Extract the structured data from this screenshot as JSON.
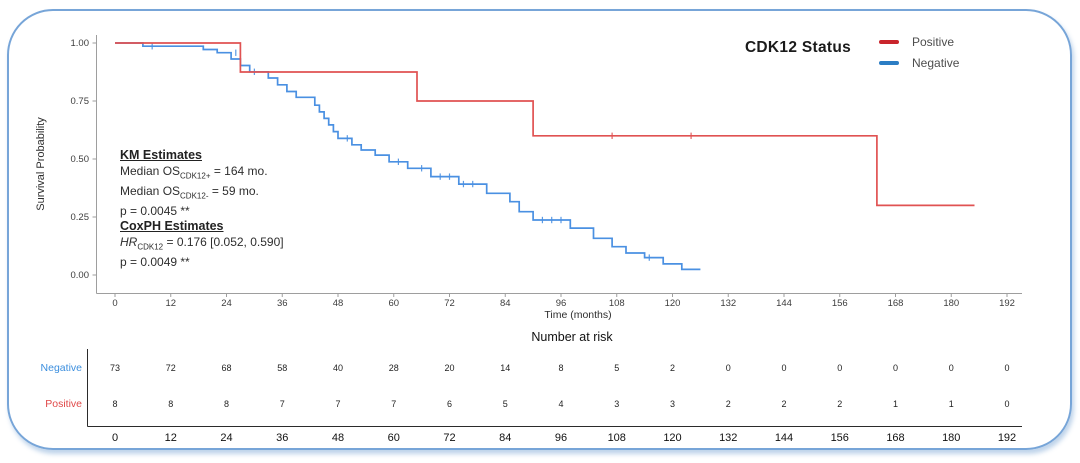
{
  "figure": {
    "title": "CDK12 Status",
    "frame_color": "#77a5d8"
  },
  "legend": {
    "items": [
      {
        "label": "Positive",
        "color": "#c9252c"
      },
      {
        "label": "Negative",
        "color": "#2b7dc4"
      }
    ]
  },
  "annotations": {
    "km": {
      "heading": "KM Estimates",
      "lines": [
        [
          {
            "text": "Median OS"
          },
          {
            "sub": "CDK12+"
          },
          {
            "text": " = 164 mo."
          }
        ],
        [
          {
            "text": "Median OS"
          },
          {
            "sub": "CDK12-"
          },
          {
            "text": " = 59 mo."
          }
        ],
        [
          {
            "text": "p = 0.0045 **"
          }
        ]
      ]
    },
    "cox": {
      "heading": "CoxPH Estimates",
      "lines": [
        [
          {
            "text": "HR",
            "italic": true
          },
          {
            "sub": "CDK12"
          },
          {
            "text": " = 0.176 [0.052, 0.590]"
          }
        ],
        [
          {
            "text": "p = 0.0049 **"
          }
        ]
      ]
    }
  },
  "chart_data": {
    "type": "line",
    "subtype": "kaplan-meier-step",
    "title": "CDK12 Status",
    "xlabel": "Time (months)",
    "ylabel": "Survival Probability",
    "xlim": [
      0,
      192
    ],
    "ylim": [
      0,
      1
    ],
    "x_ticks": [
      0,
      12,
      24,
      36,
      48,
      60,
      72,
      84,
      96,
      108,
      120,
      132,
      144,
      156,
      168,
      180,
      192
    ],
    "y_ticks": [
      1.0,
      0.75,
      0.5,
      0.25,
      0.0
    ],
    "y_tick_labels": [
      "1.00",
      "0.75",
      "0.50",
      "0.25",
      "0.00"
    ],
    "grid": false,
    "legend_position": "top-right",
    "series": [
      {
        "name": "Negative",
        "color": "#4a90e2",
        "steps": [
          [
            0,
            1.0
          ],
          [
            6,
            0.986
          ],
          [
            19,
            0.972
          ],
          [
            22,
            0.958
          ],
          [
            25,
            0.931
          ],
          [
            27,
            0.903
          ],
          [
            29,
            0.876
          ],
          [
            33,
            0.849
          ],
          [
            35,
            0.82
          ],
          [
            37,
            0.791
          ],
          [
            39,
            0.766
          ],
          [
            43,
            0.732
          ],
          [
            44,
            0.703
          ],
          [
            45,
            0.675
          ],
          [
            46,
            0.647
          ],
          [
            47,
            0.618
          ],
          [
            48,
            0.589
          ],
          [
            51,
            0.561
          ],
          [
            53,
            0.539
          ],
          [
            56,
            0.517
          ],
          [
            59,
            0.488
          ],
          [
            63,
            0.46
          ],
          [
            68,
            0.424
          ],
          [
            74,
            0.392
          ],
          [
            80,
            0.352
          ],
          [
            85,
            0.316
          ],
          [
            87,
            0.273
          ],
          [
            90,
            0.237
          ],
          [
            98,
            0.202
          ],
          [
            103,
            0.158
          ],
          [
            107,
            0.122
          ],
          [
            110,
            0.095
          ],
          [
            114,
            0.075
          ],
          [
            118,
            0.048
          ],
          [
            122,
            0.024
          ]
        ],
        "end": 126,
        "censors": [
          [
            8,
            0.986
          ],
          [
            26,
            0.958
          ],
          [
            30,
            0.876
          ],
          [
            50,
            0.589
          ],
          [
            61,
            0.488
          ],
          [
            66,
            0.46
          ],
          [
            70,
            0.424
          ],
          [
            72,
            0.424
          ],
          [
            75,
            0.392
          ],
          [
            77,
            0.392
          ],
          [
            92,
            0.237
          ],
          [
            94,
            0.237
          ],
          [
            96,
            0.237
          ],
          [
            115,
            0.075
          ]
        ]
      },
      {
        "name": "Positive",
        "color": "#e05252",
        "steps": [
          [
            0,
            1.0
          ],
          [
            27,
            0.875
          ],
          [
            65,
            0.75
          ],
          [
            90,
            0.6
          ],
          [
            164,
            0.3
          ]
        ],
        "end": 185,
        "censors": [
          [
            107,
            0.6
          ],
          [
            124,
            0.6
          ]
        ]
      }
    ]
  },
  "risk_table": {
    "heading": "Number at risk",
    "x_ticks": [
      0,
      12,
      24,
      36,
      48,
      60,
      72,
      84,
      96,
      108,
      120,
      132,
      144,
      156,
      168,
      180,
      192
    ],
    "rows": [
      {
        "label": "Negative",
        "color": "#3b8ede",
        "values": [
          73,
          72,
          68,
          58,
          40,
          28,
          20,
          14,
          8,
          5,
          2,
          0,
          0,
          0,
          0,
          0,
          0
        ]
      },
      {
        "label": "Positive",
        "color": "#e04848",
        "values": [
          8,
          8,
          8,
          7,
          7,
          7,
          6,
          5,
          4,
          3,
          3,
          2,
          2,
          2,
          1,
          1,
          0
        ]
      }
    ]
  }
}
